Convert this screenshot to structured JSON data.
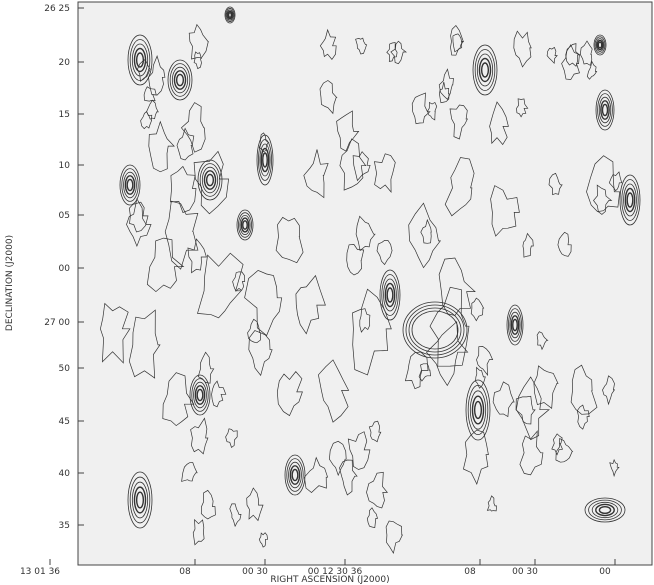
{
  "axes": {
    "y_label": "DECLINATION (J2000)",
    "x_label": "RIGHT ASCENSION (J2000)",
    "y_ticks": [
      "26 25",
      "20",
      "15",
      "10",
      "05",
      "00",
      "27 00",
      "50",
      "45",
      "40",
      "35"
    ],
    "x_ticks": [
      "13 01 36",
      "08",
      "00 30",
      "00 12 30 36",
      "08",
      "00 30",
      "00"
    ]
  }
}
